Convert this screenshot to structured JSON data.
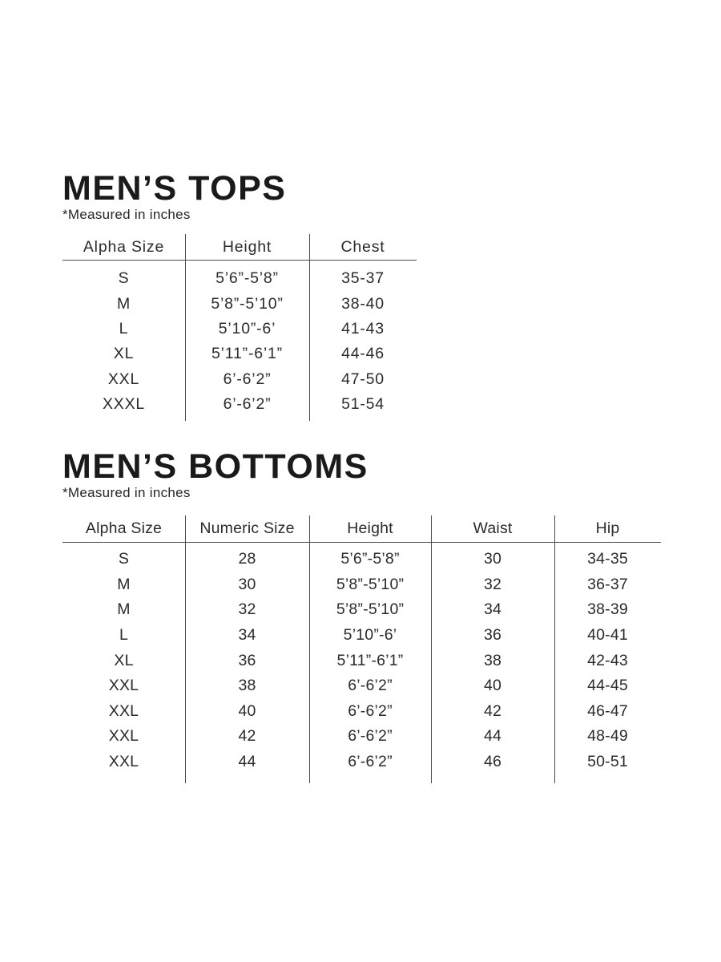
{
  "theme": {
    "background": "#ffffff",
    "text_color": "#2b2b2b",
    "title_color": "#1a1a1a",
    "line_color": "#4a4a4a"
  },
  "sections": [
    {
      "title": "MEN’S TOPS",
      "note": "*Measured in inches",
      "table": {
        "columns": [
          "Alpha Size",
          "Height",
          "Chest"
        ],
        "rows": [
          [
            "S",
            "5’6”-5’8”",
            "35-37"
          ],
          [
            "M",
            "5’8”-5’10”",
            "38-40"
          ],
          [
            "L",
            "5’10”-6’",
            "41-43"
          ],
          [
            "XL",
            "5’11”-6’1”",
            "44-46"
          ],
          [
            "XXL",
            "6’-6’2”",
            "47-50"
          ],
          [
            "XXXL",
            "6’-6’2”",
            "51-54"
          ]
        ]
      }
    },
    {
      "title": "MEN’S BOTTOMS",
      "note": "*Measured in inches",
      "table": {
        "columns": [
          "Alpha Size",
          "Numeric Size",
          "Height",
          "Waist",
          "Hip"
        ],
        "rows": [
          [
            "S",
            "28",
            "5’6”-5’8”",
            "30",
            "34-35"
          ],
          [
            "M",
            "30",
            "5’8”-5’10”",
            "32",
            "36-37"
          ],
          [
            "M",
            "32",
            "5’8”-5’10”",
            "34",
            "38-39"
          ],
          [
            "L",
            "34",
            "5’10”-6’",
            "36",
            "40-41"
          ],
          [
            "XL",
            "36",
            "5’11”-6’1”",
            "38",
            "42-43"
          ],
          [
            "XXL",
            "38",
            "6’-6’2”",
            "40",
            "44-45"
          ],
          [
            "XXL",
            "40",
            "6’-6’2”",
            "42",
            "46-47"
          ],
          [
            "XXL",
            "42",
            "6’-6’2”",
            "44",
            "48-49"
          ],
          [
            "XXL",
            "44",
            "6’-6’2”",
            "46",
            "50-51"
          ]
        ]
      }
    }
  ]
}
